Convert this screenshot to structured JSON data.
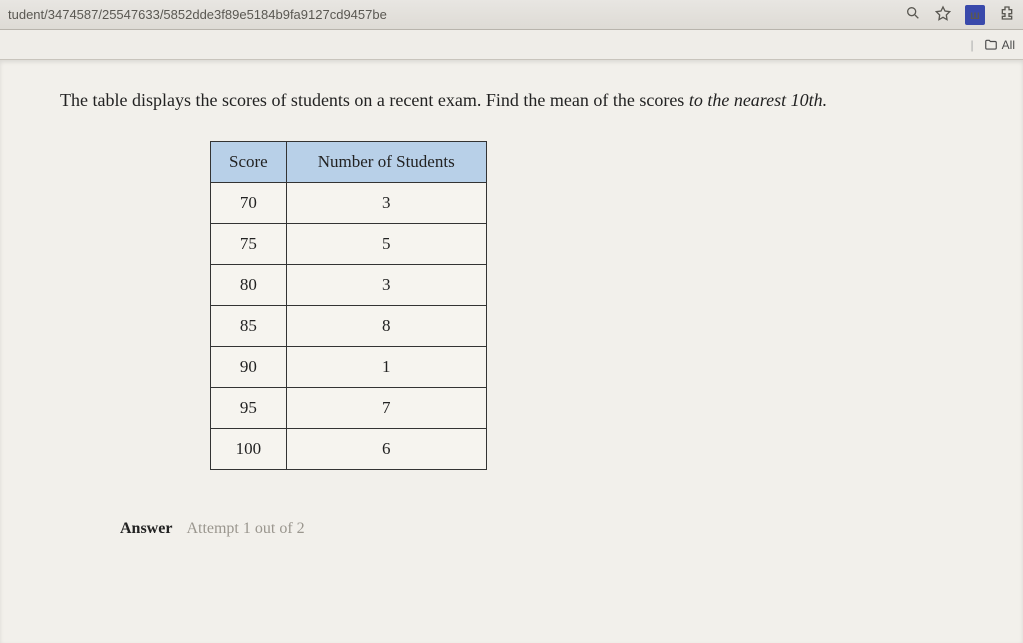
{
  "browser": {
    "url_fragment": "tudent/3474587/25547633/5852dde3f89e5184b9fa9127cd9457be",
    "ext_badge": "ш",
    "bookmark_folder": "All"
  },
  "question": {
    "prefix": "The table displays the scores of students on a recent exam. Find the mean of the scores ",
    "emphasis": "to the nearest 10th."
  },
  "table": {
    "columns": [
      "Score",
      "Number of Students"
    ],
    "rows": [
      [
        "70",
        "3"
      ],
      [
        "75",
        "5"
      ],
      [
        "80",
        "3"
      ],
      [
        "85",
        "8"
      ],
      [
        "90",
        "1"
      ],
      [
        "95",
        "7"
      ],
      [
        "100",
        "6"
      ]
    ],
    "header_bg": "#b8d0e8",
    "border_color": "#333333",
    "cell_bg": "#f6f4ef",
    "font_size_pt": 13
  },
  "answer": {
    "label": "Answer",
    "attempt_text": "Attempt 1 out of 2"
  }
}
